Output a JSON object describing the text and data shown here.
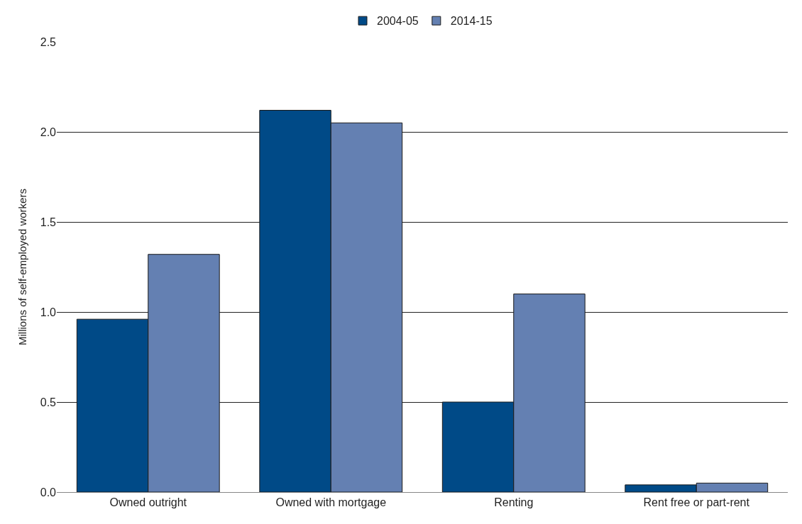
{
  "chart_data": {
    "type": "bar",
    "ylabel": "Millions of self-employed workers",
    "categories": [
      "Owned outright",
      "Owned with mortgage",
      "Renting",
      "Rent free or part-rent"
    ],
    "series": [
      {
        "name": "2004-05",
        "color": "#004a87",
        "values": [
          0.96,
          2.12,
          0.5,
          0.04
        ]
      },
      {
        "name": "2014-15",
        "color": "#6480b2",
        "values": [
          1.32,
          2.05,
          1.1,
          0.05
        ]
      }
    ],
    "ylim": [
      0,
      2.5
    ],
    "yticks": [
      {
        "value": 0,
        "label": "0.0"
      },
      {
        "value": 0.5,
        "label": "0.5"
      },
      {
        "value": 1,
        "label": "1.0"
      },
      {
        "value": 1.5,
        "label": "1.5"
      },
      {
        "value": 2,
        "label": "2.0"
      },
      {
        "value": 2.5,
        "label": "2.5"
      }
    ],
    "grid": "y",
    "legend": "top"
  }
}
